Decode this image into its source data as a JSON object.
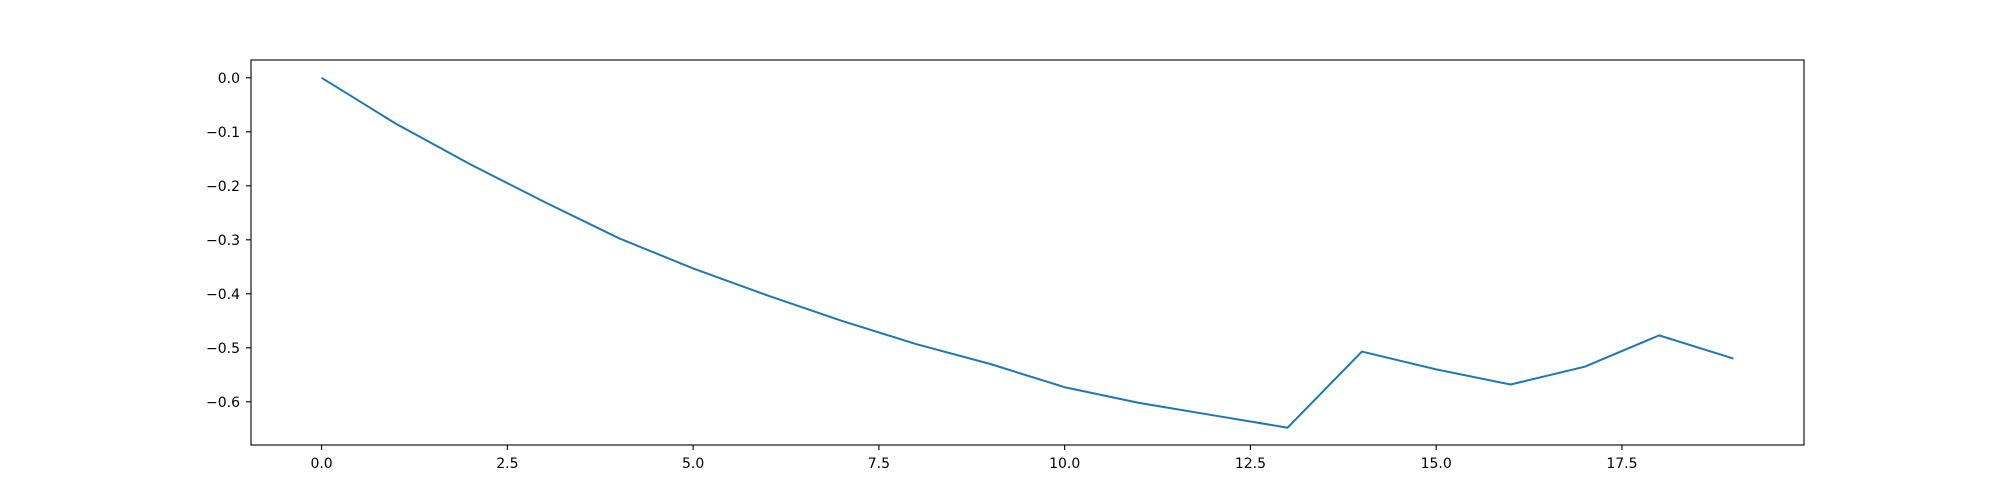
{
  "chart_data": {
    "type": "line",
    "title": "",
    "xlabel": "",
    "ylabel": "",
    "xlim": [
      -0.95,
      19.95
    ],
    "ylim": [
      -0.68,
      0.033
    ],
    "grid": false,
    "x_ticks": [
      0.0,
      2.5,
      5.0,
      7.5,
      10.0,
      12.5,
      15.0,
      17.5
    ],
    "x_tick_labels": [
      "0.0",
      "2.5",
      "5.0",
      "7.5",
      "10.0",
      "12.5",
      "15.0",
      "17.5"
    ],
    "y_ticks": [
      0.0,
      -0.1,
      -0.2,
      -0.3,
      -0.4,
      -0.5,
      -0.6
    ],
    "y_tick_labels": [
      "0.0",
      "−0.1",
      "−0.2",
      "−0.3",
      "−0.4",
      "−0.5",
      "−0.6"
    ],
    "series": [
      {
        "color": "#1f77b4",
        "x": [
          0,
          1,
          2,
          3,
          4,
          5,
          6,
          7,
          8,
          9,
          10,
          11,
          12,
          13,
          14,
          15,
          16,
          17,
          18,
          19
        ],
        "y": [
          0.0,
          -0.085,
          -0.16,
          -0.23,
          -0.297,
          -0.353,
          -0.403,
          -0.45,
          -0.493,
          -0.53,
          -0.573,
          -0.602,
          -0.625,
          -0.648,
          -0.507,
          -0.54,
          -0.568,
          -0.535,
          -0.477,
          -0.52
        ]
      }
    ]
  }
}
